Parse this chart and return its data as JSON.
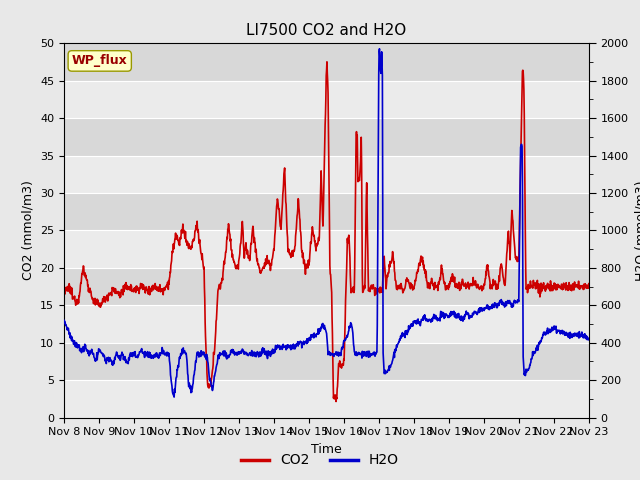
{
  "title": "LI7500 CO2 and H2O",
  "xlabel": "Time",
  "ylabel_left": "CO2 (mmol/m3)",
  "ylabel_right": "H2O (mmol/m3)",
  "annotation": "WP_flux",
  "x_tick_labels": [
    "Nov 8",
    "Nov 9",
    "Nov 10",
    "Nov 11",
    "Nov 12",
    "Nov 13",
    "Nov 14",
    "Nov 15",
    "Nov 16",
    "Nov 17",
    "Nov 18",
    "Nov 19",
    "Nov 20",
    "Nov 21",
    "Nov 22",
    "Nov 23"
  ],
  "ylim_left": [
    0,
    50
  ],
  "ylim_right": [
    0,
    2000
  ],
  "yticks_left": [
    0,
    5,
    10,
    15,
    20,
    25,
    30,
    35,
    40,
    45,
    50
  ],
  "yticks_right": [
    0,
    200,
    400,
    600,
    800,
    1000,
    1200,
    1400,
    1600,
    1800,
    2000
  ],
  "co2_color": "#cc0000",
  "h2o_color": "#0000cc",
  "fig_facecolor": "#e8e8e8",
  "plot_band_light": "#ebebeb",
  "plot_band_dark": "#d8d8d8",
  "annotation_bg": "#ffffcc",
  "annotation_border": "#999900",
  "annotation_text_color": "#990000",
  "title_fontsize": 11,
  "axis_label_fontsize": 9,
  "tick_fontsize": 8,
  "legend_fontsize": 10,
  "line_width": 1.2,
  "n_days": 15,
  "pts_per_day": 96
}
